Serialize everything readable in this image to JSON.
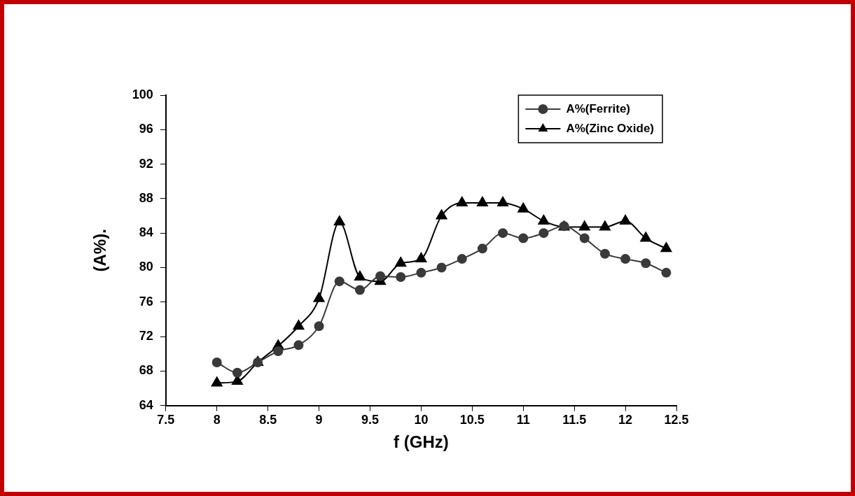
{
  "chart_data": {
    "type": "line",
    "xlabel": "f (GHz)",
    "ylabel": "(A%).",
    "x": [
      8,
      8.2,
      8.4,
      8.6,
      8.8,
      9,
      9.2,
      9.4,
      9.6,
      9.8,
      10,
      10.2,
      10.4,
      10.6,
      10.8,
      11,
      11.2,
      11.4,
      11.6,
      11.8,
      12,
      12.2,
      12.4
    ],
    "series": [
      {
        "name": "A%(Ferrite)",
        "color": "#3a3a3a",
        "marker": "circle",
        "values": [
          69,
          67.8,
          69,
          70.3,
          71,
          73.2,
          78.4,
          77.4,
          79,
          78.9,
          79.4,
          80,
          81,
          82.2,
          84,
          83.4,
          84,
          84.8,
          83.4,
          81.6,
          81,
          80.5,
          79.4
        ]
      },
      {
        "name": "A%(Zinc Oxide)",
        "color": "#000000",
        "marker": "triangle",
        "values": [
          66.6,
          66.8,
          69,
          70.9,
          73.2,
          76.4,
          85.3,
          78.9,
          78.4,
          80.5,
          81,
          86,
          87.5,
          87.5,
          87.5,
          86.8,
          85.4,
          84.7,
          84.7,
          84.7,
          85.4,
          83.4,
          82.2
        ]
      }
    ],
    "xlim": [
      7.5,
      12.5
    ],
    "xticks": [
      7.5,
      8,
      8.5,
      9,
      9.5,
      10,
      10.5,
      11,
      11.5,
      12,
      12.5
    ],
    "ylim": [
      64,
      100
    ],
    "yticks": [
      64,
      68,
      72,
      76,
      80,
      84,
      88,
      92,
      96,
      100
    ],
    "grid": false,
    "legend": "top right",
    "line_style": "solid"
  }
}
